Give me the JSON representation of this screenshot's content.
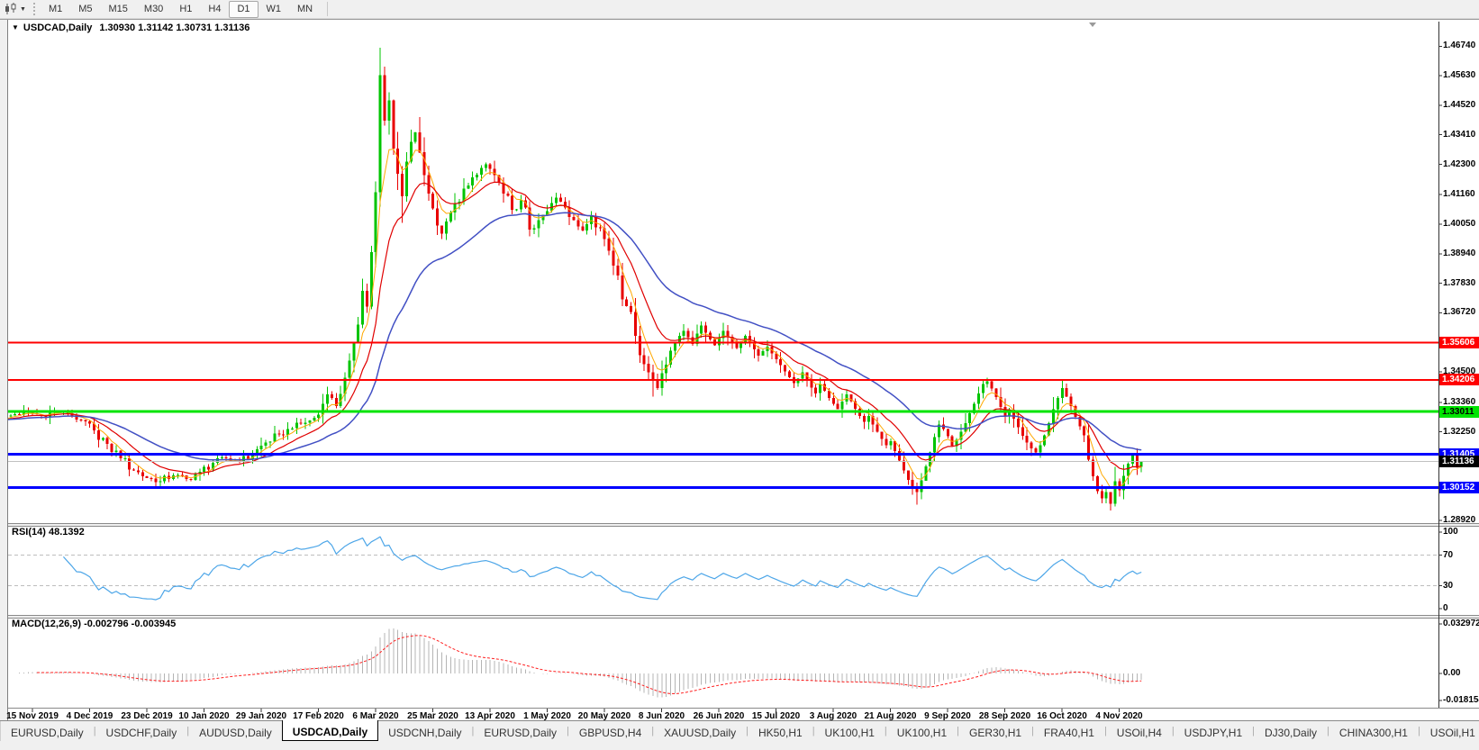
{
  "toolbar": {
    "timeframes": [
      "M1",
      "M5",
      "M15",
      "M30",
      "H1",
      "H4",
      "D1",
      "W1",
      "MN"
    ],
    "active_timeframe": "D1",
    "chart_type_icon": "candlestick-chart-icon",
    "dropdown_caret": "▼"
  },
  "chart": {
    "title_caret": "▼",
    "title_symbol": "USDCAD,Daily",
    "title_ohlc": "1.30930 1.31142 1.30731 1.31136"
  },
  "chart_data": {
    "type": "candlestick",
    "symbol": "USDCAD",
    "period": "Daily",
    "last_candle": {
      "open": 1.3093,
      "high": 1.31142,
      "low": 1.30731,
      "close": 1.31136
    },
    "ylim": [
      1.2882,
      1.4772
    ],
    "x_ticks": [
      "15 Nov 2019",
      "4 Dec 2019",
      "23 Dec 2019",
      "10 Jan 2020",
      "29 Jan 2020",
      "17 Feb 2020",
      "6 Mar 2020",
      "25 Mar 2020",
      "13 Apr 2020",
      "1 May 2020",
      "20 May 2020",
      "8 Jun 2020",
      "26 Jun 2020",
      "15 Jul 2020",
      "3 Aug 2020",
      "21 Aug 2020",
      "9 Sep 2020",
      "28 Sep 2020",
      "16 Oct 2020",
      "4 Nov 2020"
    ],
    "candles_per_tick": 13,
    "first_tick_candle_index": 7,
    "num_candles": 260,
    "colors": {
      "up": "#00c400",
      "down": "#e80000",
      "background": "#ffffff"
    },
    "price_axis_labels": [
      {
        "text": "1.46740",
        "price": 1.4674
      },
      {
        "text": "1.45630",
        "price": 1.4563
      },
      {
        "text": "1.44520",
        "price": 1.4452
      },
      {
        "text": "1.43410",
        "price": 1.4341
      },
      {
        "text": "1.42300",
        "price": 1.423
      },
      {
        "text": "1.41160",
        "price": 1.4116
      },
      {
        "text": "1.40050",
        "price": 1.4005
      },
      {
        "text": "1.38940",
        "price": 1.3894
      },
      {
        "text": "1.37830",
        "price": 1.3783
      },
      {
        "text": "1.36720",
        "price": 1.3672
      },
      {
        "text": "1.34500",
        "price": 1.345
      },
      {
        "text": "1.33360",
        "price": 1.3336
      },
      {
        "text": "1.32250",
        "price": 1.3225
      },
      {
        "text": "1.30030",
        "price": 1.3003
      },
      {
        "text": "1.28920",
        "price": 1.2892
      }
    ],
    "price_badges": [
      {
        "text": "1.35606",
        "price": 1.35606,
        "bg": "#ff0000",
        "fg": "#ffffff"
      },
      {
        "text": "1.34206",
        "price": 1.34206,
        "bg": "#ff0000",
        "fg": "#ffffff"
      },
      {
        "text": "1.33011",
        "price": 1.33011,
        "bg": "#00e400",
        "fg": "#000000"
      },
      {
        "text": "1.31405",
        "price": 1.31405,
        "bg": "#0000ff",
        "fg": "#ffffff"
      },
      {
        "text": "1.31136",
        "price": 1.31136,
        "bg": "#000000",
        "fg": "#ffffff"
      },
      {
        "text": "1.30152",
        "price": 1.30152,
        "bg": "#0000ff",
        "fg": "#ffffff"
      }
    ],
    "hlines": [
      {
        "price": 1.35606,
        "color": "#ff0000",
        "width": 2,
        "name": "resistance-line"
      },
      {
        "price": 1.34206,
        "color": "#ff0000",
        "width": 2,
        "name": "resistance-line"
      },
      {
        "price": 1.33011,
        "color": "#00e400",
        "width": 3,
        "name": "pivot-line"
      },
      {
        "price": 1.31405,
        "color": "#0000ff",
        "width": 3,
        "name": "support-line"
      },
      {
        "price": 1.31136,
        "color": "#c0c0c0",
        "width": 1,
        "name": "bid-price-line"
      },
      {
        "price": 1.30152,
        "color": "#0000ff",
        "width": 3,
        "name": "support-line"
      }
    ],
    "moving_averages": [
      {
        "name": "fast-ma",
        "type": "ema",
        "period": 5,
        "color": "#ffa800",
        "width": 1
      },
      {
        "name": "mid-ma",
        "type": "ema",
        "period": 13,
        "color": "#e00000",
        "width": 1.2
      },
      {
        "name": "slow-ma",
        "type": "ema",
        "period": 34,
        "color": "#4250c4",
        "width": 1.5
      }
    ],
    "price_anchors": [
      [
        0,
        1.327
      ],
      [
        3,
        1.3292
      ],
      [
        6,
        1.33
      ],
      [
        9,
        1.3285
      ],
      [
        12,
        1.3302
      ],
      [
        15,
        1.3295
      ],
      [
        18,
        1.327
      ],
      [
        21,
        1.323
      ],
      [
        24,
        1.318
      ],
      [
        27,
        1.3125
      ],
      [
        30,
        1.308
      ],
      [
        33,
        1.3052
      ],
      [
        36,
        1.304
      ],
      [
        39,
        1.3062
      ],
      [
        42,
        1.3048
      ],
      [
        45,
        1.3075
      ],
      [
        48,
        1.3108
      ],
      [
        51,
        1.3125
      ],
      [
        54,
        1.3112
      ],
      [
        57,
        1.314
      ],
      [
        60,
        1.3185
      ],
      [
        63,
        1.3215
      ],
      [
        66,
        1.3238
      ],
      [
        68,
        1.3255
      ],
      [
        70,
        1.3268
      ],
      [
        72,
        1.329
      ],
      [
        73,
        1.333
      ],
      [
        74,
        1.3365
      ],
      [
        75,
        1.3352
      ],
      [
        76,
        1.3322
      ],
      [
        77,
        1.3368
      ],
      [
        78,
        1.3428
      ],
      [
        79,
        1.3492
      ],
      [
        80,
        1.3558
      ],
      [
        81,
        1.3628
      ],
      [
        82,
        1.3755
      ],
      [
        83,
        1.3695
      ],
      [
        84,
        1.39
      ],
      [
        85,
        1.4125
      ],
      [
        86,
        1.4565
      ],
      [
        87,
        1.4395
      ],
      [
        88,
        1.447
      ],
      [
        89,
        1.429
      ],
      [
        90,
        1.4195
      ],
      [
        91,
        1.411
      ],
      [
        92,
        1.424
      ],
      [
        93,
        1.4315
      ],
      [
        94,
        1.435
      ],
      [
        95,
        1.4275
      ],
      [
        96,
        1.419
      ],
      [
        97,
        1.412
      ],
      [
        98,
        1.4065
      ],
      [
        99,
        1.4
      ],
      [
        100,
        1.397
      ],
      [
        101,
        1.4015
      ],
      [
        102,
        1.405
      ],
      [
        104,
        1.409
      ],
      [
        106,
        1.415
      ],
      [
        108,
        1.4192
      ],
      [
        110,
        1.423
      ],
      [
        112,
        1.419
      ],
      [
        114,
        1.412
      ],
      [
        116,
        1.406
      ],
      [
        118,
        1.4095
      ],
      [
        120,
        1.3985
      ],
      [
        122,
        1.402
      ],
      [
        124,
        1.4055
      ],
      [
        126,
        1.4105
      ],
      [
        128,
        1.4068
      ],
      [
        130,
        1.402
      ],
      [
        132,
        1.3982
      ],
      [
        134,
        1.4035
      ],
      [
        136,
        1.399
      ],
      [
        138,
        1.3905
      ],
      [
        140,
        1.3812
      ],
      [
        142,
        1.3698
      ],
      [
        144,
        1.3585
      ],
      [
        146,
        1.348
      ],
      [
        148,
        1.342
      ],
      [
        149,
        1.339
      ],
      [
        150,
        1.3445
      ],
      [
        151,
        1.3478
      ],
      [
        152,
        1.353
      ],
      [
        153,
        1.3562
      ],
      [
        154,
        1.3585
      ],
      [
        155,
        1.3605
      ],
      [
        156,
        1.358
      ],
      [
        157,
        1.3555
      ],
      [
        158,
        1.3595
      ],
      [
        159,
        1.3625
      ],
      [
        160,
        1.3598
      ],
      [
        161,
        1.3572
      ],
      [
        162,
        1.355
      ],
      [
        163,
        1.3578
      ],
      [
        164,
        1.3605
      ],
      [
        165,
        1.3582
      ],
      [
        166,
        1.3558
      ],
      [
        167,
        1.354
      ],
      [
        168,
        1.3562
      ],
      [
        169,
        1.3585
      ],
      [
        170,
        1.356
      ],
      [
        171,
        1.3535
      ],
      [
        172,
        1.3512
      ],
      [
        173,
        1.3528
      ],
      [
        174,
        1.3545
      ],
      [
        175,
        1.352
      ],
      [
        176,
        1.3498
      ],
      [
        177,
        1.3475
      ],
      [
        178,
        1.3452
      ],
      [
        179,
        1.343
      ],
      [
        180,
        1.3408
      ],
      [
        181,
        1.3425
      ],
      [
        182,
        1.3448
      ],
      [
        183,
        1.342
      ],
      [
        184,
        1.3392
      ],
      [
        185,
        1.337
      ],
      [
        186,
        1.3405
      ],
      [
        187,
        1.338
      ],
      [
        188,
        1.3352
      ],
      [
        189,
        1.333
      ],
      [
        190,
        1.331
      ],
      [
        191,
        1.3338
      ],
      [
        192,
        1.3365
      ],
      [
        193,
        1.334
      ],
      [
        194,
        1.3312
      ],
      [
        195,
        1.3285
      ],
      [
        196,
        1.3262
      ],
      [
        197,
        1.3285
      ],
      [
        198,
        1.3252
      ],
      [
        199,
        1.3225
      ],
      [
        200,
        1.3198
      ],
      [
        201,
        1.3175
      ],
      [
        202,
        1.319
      ],
      [
        203,
        1.3152
      ],
      [
        204,
        1.3118
      ],
      [
        205,
        1.308
      ],
      [
        206,
        1.3045
      ],
      [
        207,
        1.3012
      ],
      [
        208,
        1.2998
      ],
      [
        209,
        1.3042
      ],
      [
        210,
        1.3095
      ],
      [
        211,
        1.3148
      ],
      [
        212,
        1.3205
      ],
      [
        213,
        1.3252
      ],
      [
        214,
        1.3235
      ],
      [
        215,
        1.3208
      ],
      [
        216,
        1.3172
      ],
      [
        217,
        1.3195
      ],
      [
        218,
        1.3225
      ],
      [
        219,
        1.3258
      ],
      [
        220,
        1.3295
      ],
      [
        221,
        1.333
      ],
      [
        222,
        1.337
      ],
      [
        223,
        1.3405
      ],
      [
        224,
        1.3415
      ],
      [
        225,
        1.3388
      ],
      [
        226,
        1.3355
      ],
      [
        227,
        1.3318
      ],
      [
        228,
        1.3285
      ],
      [
        229,
        1.3308
      ],
      [
        230,
        1.3275
      ],
      [
        231,
        1.3242
      ],
      [
        232,
        1.321
      ],
      [
        233,
        1.3185
      ],
      [
        234,
        1.3162
      ],
      [
        235,
        1.3148
      ],
      [
        236,
        1.3175
      ],
      [
        237,
        1.3212
      ],
      [
        238,
        1.3258
      ],
      [
        239,
        1.331
      ],
      [
        240,
        1.3352
      ],
      [
        241,
        1.339
      ],
      [
        242,
        1.3358
      ],
      [
        243,
        1.3322
      ],
      [
        244,
        1.3282
      ],
      [
        245,
        1.3245
      ],
      [
        246,
        1.3212
      ],
      [
        247,
        1.312
      ],
      [
        248,
        1.3058
      ],
      [
        249,
        1.3002
      ],
      [
        250,
        1.2975
      ],
      [
        251,
        1.2998
      ],
      [
        252,
        1.2955
      ],
      [
        253,
        1.304
      ],
      [
        254,
        1.3005
      ],
      [
        255,
        1.306
      ],
      [
        256,
        1.3105
      ],
      [
        257,
        1.3135
      ],
      [
        258,
        1.309
      ],
      [
        259,
        1.31136
      ]
    ],
    "candle_overrides": {
      "86": {
        "h": 1.4668
      },
      "91": {
        "l": 1.401
      },
      "148": {
        "l": 1.3358
      },
      "208": {
        "l": 1.2952
      },
      "223": {
        "h": 1.342
      },
      "241": {
        "h": 1.342
      },
      "252": {
        "l": 1.293
      },
      "259": {
        "o": 1.3093,
        "h": 1.31142,
        "l": 1.30731,
        "c": 1.31136
      }
    },
    "rsi": {
      "label": "RSI(14) 48.1392",
      "period": 14,
      "value": 48.1392,
      "color": "#4da6e8",
      "levels": [
        70,
        30
      ],
      "axis_labels": [
        {
          "text": "100",
          "value": 100
        },
        {
          "text": "70",
          "value": 70
        },
        {
          "text": "30",
          "value": 30
        },
        {
          "text": "0",
          "value": 0
        }
      ],
      "ylim": [
        0,
        100
      ]
    },
    "macd": {
      "label": "MACD(12,26,9) -0.002796 -0.003945",
      "fast": 12,
      "slow": 26,
      "signal_period": 9,
      "macd_value": -0.002796,
      "signal_value": -0.003945,
      "histogram_color": "#b4b4b4",
      "signal_color": "#ff2020",
      "axis_labels": [
        {
          "text": "0.032972",
          "value": 0.032972
        },
        {
          "text": "0.00",
          "value": 0.0
        },
        {
          "text": "-0.018154",
          "value": -0.018154
        }
      ]
    }
  },
  "tabs": {
    "items": [
      "EURUSD,Daily",
      "USDCHF,Daily",
      "AUDUSD,Daily",
      "USDCAD,Daily",
      "USDCNH,Daily",
      "EURUSD,Daily",
      "GBPUSD,H4",
      "XAUUSD,Daily",
      "HK50,H1",
      "UK100,H1",
      "UK100,H1",
      "GER30,H1",
      "FRA40,H1",
      "USOil,H4",
      "USDJPY,H1",
      "DJ30,Daily",
      "CHINA300,H1",
      "USOil,H1"
    ],
    "active_index": 3,
    "scroll_left_icon": "◄",
    "scroll_right_icon": "►"
  }
}
